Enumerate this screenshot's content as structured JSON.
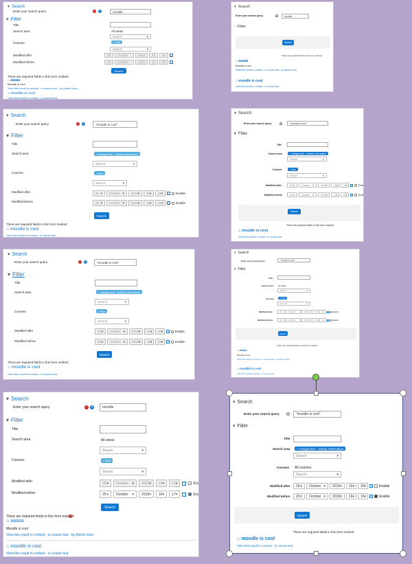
{
  "labels": {
    "search": "Search",
    "filter": "Filter",
    "query": "Enter your search query",
    "title": "Title",
    "search_area": "Search area",
    "courses": "Courses",
    "modified_after": "Modified after",
    "modified_before": "Modified before",
    "search_button": "Search",
    "enable": "Enable",
    "required_note": "There are required fields in this form marked",
    "all_areas": "All areas",
    "all_courses": "All courses",
    "search_placeholder": "Search",
    "area_tag": "× Assignment - activity information",
    "course_tag": "× test",
    "req_glyph": "!",
    "help_glyph": "?",
    "cal_glyph": "",
    "result1_title": "aaaaa",
    "result1_body": "Moodle is cool",
    "result1_link": "View this result in context - in course test - by Admin User",
    "result2_title": "moodle is cool",
    "result2_link": "View this result in context - in course test",
    "panel_b_result_link": "View this result in context - in course test"
  },
  "date_after_oct": {
    "day": "29",
    "month": "October",
    "year": "2018",
    "hour": "16",
    "min": "20"
  },
  "date_after_a": {
    "day": "29",
    "month": "October",
    "year": "2018",
    "hour": "16",
    "min": "04"
  },
  "date_before_a": {
    "day": "29",
    "month": "October",
    "year": "2018",
    "hour": "16",
    "min": "03"
  },
  "date_b1": {
    "day": "29",
    "month": "October",
    "year": "2018",
    "hour": "16",
    "min": "02"
  },
  "date_b2": {
    "day": "29",
    "month": "October",
    "year": "2018",
    "hour": "16",
    "min": "03"
  },
  "date_g1": {
    "day": "29",
    "month": "October",
    "year": "2018",
    "hour": "16",
    "min": "17"
  },
  "date_g2": {
    "day": "29",
    "month": "October",
    "year": "2018",
    "hour": "16",
    "min": "17"
  },
  "date_h2": {
    "day": "29",
    "month": "October",
    "year": "2018",
    "hour": "16",
    "min": "15"
  },
  "queries": {
    "a": "moodle",
    "b": "\"moodle is cool\"",
    "e": "\"moodle is cool\"",
    "g": "moodle",
    "h": "\"moodle is cool\""
  }
}
